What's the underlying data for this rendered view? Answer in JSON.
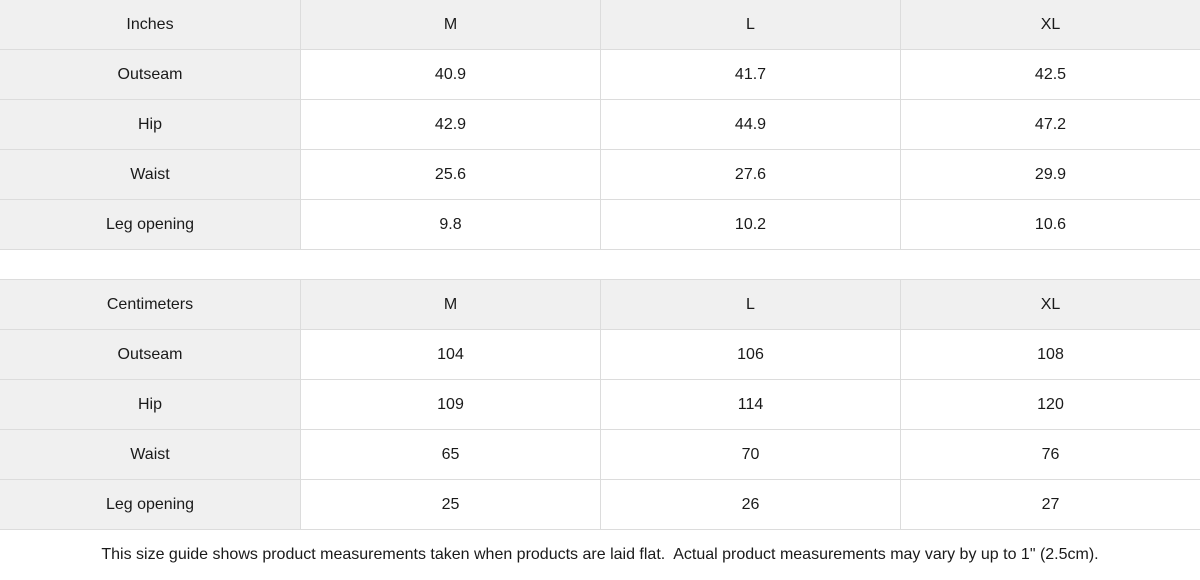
{
  "colors": {
    "header_bg": "#f0f0f0",
    "label_column_bg": "#f0f0f0",
    "border": "#dcdcdc",
    "text": "#1a1a1a",
    "data_cell_bg": "#ffffff"
  },
  "tables": [
    {
      "unit_label": "Inches",
      "columns": [
        "M",
        "L",
        "XL"
      ],
      "rows": [
        {
          "label": "Outseam",
          "values": [
            "40.9",
            "41.7",
            "42.5"
          ]
        },
        {
          "label": "Hip",
          "values": [
            "42.9",
            "44.9",
            "47.2"
          ]
        },
        {
          "label": "Waist",
          "values": [
            "25.6",
            "27.6",
            "29.9"
          ]
        },
        {
          "label": "Leg opening",
          "values": [
            "9.8",
            "10.2",
            "10.6"
          ]
        }
      ]
    },
    {
      "unit_label": "Centimeters",
      "columns": [
        "M",
        "L",
        "XL"
      ],
      "rows": [
        {
          "label": "Outseam",
          "values": [
            "104",
            "106",
            "108"
          ]
        },
        {
          "label": "Hip",
          "values": [
            "109",
            "114",
            "120"
          ]
        },
        {
          "label": "Waist",
          "values": [
            "65",
            "70",
            "76"
          ]
        },
        {
          "label": "Leg opening",
          "values": [
            "25",
            "26",
            "27"
          ]
        }
      ]
    }
  ],
  "footer": {
    "note": "This size guide shows product measurements taken when products are laid flat.  Actual product measurements may vary by up to 1\" (2.5cm)."
  }
}
